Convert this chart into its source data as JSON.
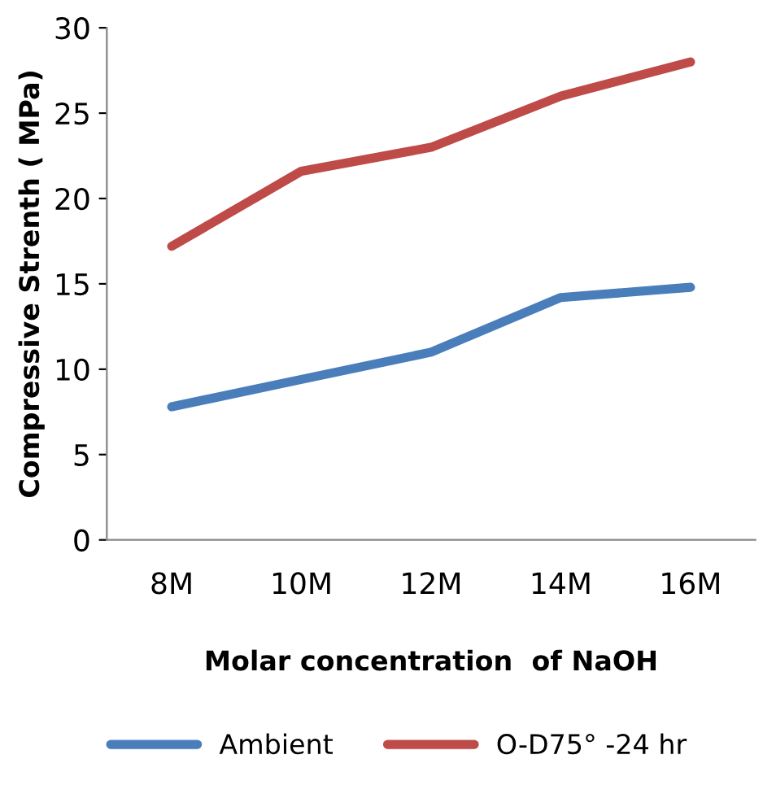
{
  "chart_data": {
    "type": "line",
    "xlabel": "Molar concentration  of NaOH",
    "ylabel": "Compressive Strenth ( MPa)",
    "categories": [
      "8M",
      "10M",
      "12M",
      "14M",
      "16M"
    ],
    "series": [
      {
        "name": "Ambient",
        "color": "#4a7ebb",
        "values": [
          7.8,
          9.4,
          11.0,
          14.2,
          14.8
        ]
      },
      {
        "name": "O-D75° -24 hr",
        "color": "#be4b48",
        "values": [
          17.2,
          21.6,
          23.0,
          26.0,
          28.0
        ]
      }
    ],
    "ylim": [
      0,
      30
    ],
    "yticks": [
      0,
      5,
      10,
      15,
      20,
      25,
      30
    ],
    "grid": false,
    "legend": "bottom",
    "marker": "none",
    "line_style": "solid"
  }
}
